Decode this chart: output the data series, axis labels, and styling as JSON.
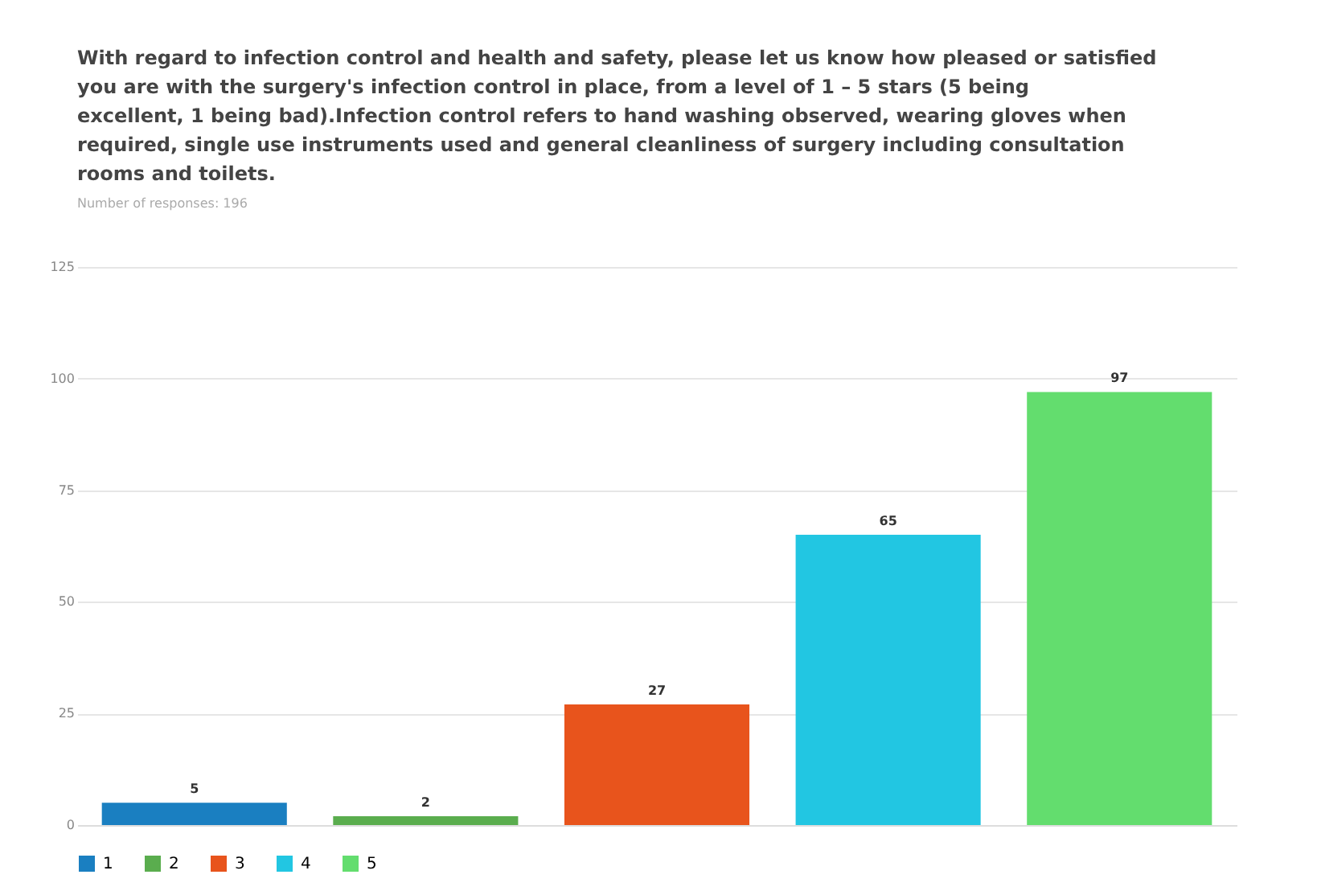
{
  "chart_data": {
    "type": "bar",
    "title": "With regard to infection control and health and safety, please let us know how pleased or satisfied you are with the surgery's infection control in place, from a level of 1 – 5 stars (5 being excellent, 1 being bad).Infection control refers to hand washing observed, wearing gloves when required, single use instruments used and general cleanliness of surgery including consultation rooms and toilets.",
    "subtitle": "Number of responses: 196",
    "categories": [
      null
    ],
    "series": [
      {
        "name": "1",
        "color": "#1a7fc1",
        "values": [
          5
        ]
      },
      {
        "name": "2",
        "color": "#5aad4e",
        "values": [
          2
        ]
      },
      {
        "name": "3",
        "color": "#e8541c",
        "values": [
          27
        ]
      },
      {
        "name": "4",
        "color": "#22c6e2",
        "values": [
          65
        ]
      },
      {
        "name": "5",
        "color": "#63dd6e",
        "values": [
          97
        ]
      }
    ],
    "ylim": [
      0,
      125
    ],
    "yticks": [
      0,
      25,
      50,
      75,
      100,
      125
    ],
    "grid": "y",
    "legend": "bottom",
    "tick_labels": "y",
    "data_labels": true
  }
}
